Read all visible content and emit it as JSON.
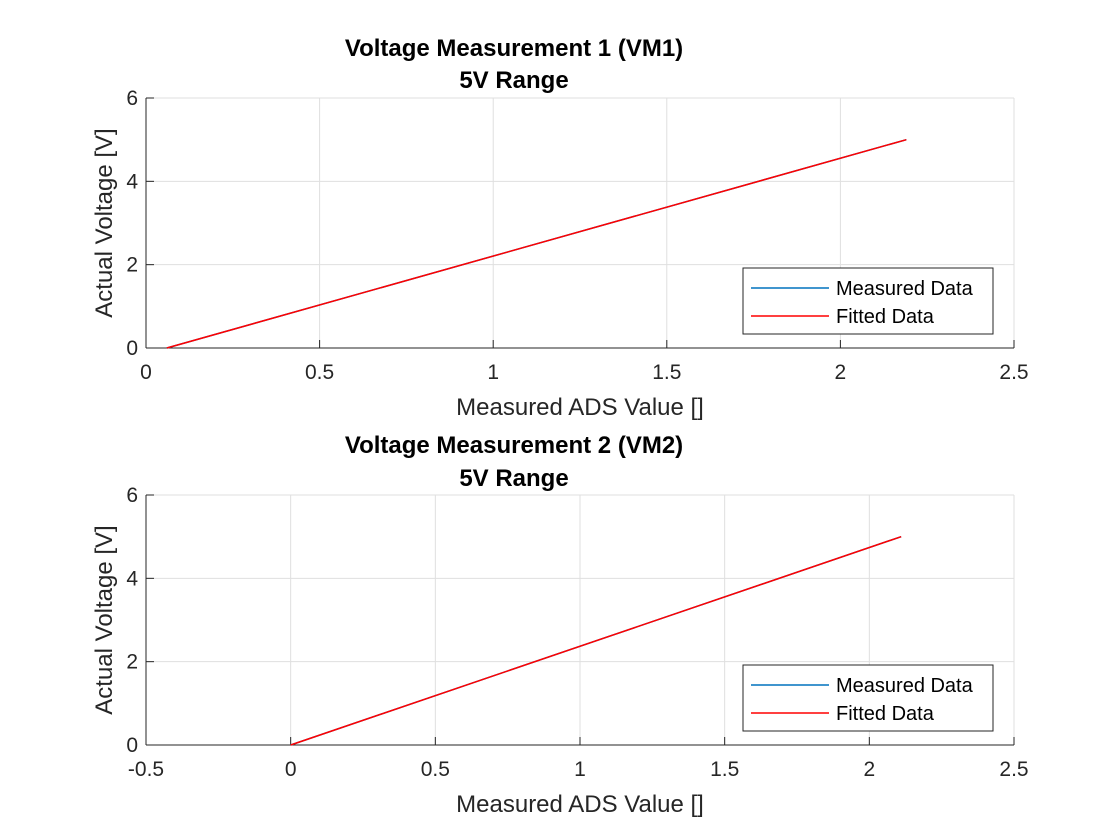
{
  "chart_data": [
    {
      "type": "line",
      "title": "Voltage Measurement 1 (VM1)",
      "subtitle": "5V Range",
      "xlabel": "Measured ADS Value []",
      "ylabel": "Actual Voltage [V]",
      "xlim": [
        0,
        2.5
      ],
      "ylim": [
        0,
        6
      ],
      "xticks": [
        0,
        0.5,
        1,
        1.5,
        2,
        2.5
      ],
      "xtick_labels": [
        "0",
        "0.5",
        "1",
        "1.5",
        "2",
        "2.5"
      ],
      "yticks": [
        0,
        2,
        4,
        6
      ],
      "ytick_labels": [
        "0",
        "2",
        "4",
        "6"
      ],
      "grid": true,
      "legend_position": "bottom-right",
      "series": [
        {
          "name": "Measured Data",
          "color": "#0072BD",
          "x": [
            0.06,
            2.19
          ],
          "y": [
            0.0,
            5.0
          ]
        },
        {
          "name": "Fitted Data",
          "color": "#FF0000",
          "x": [
            0.06,
            2.19
          ],
          "y": [
            0.0,
            5.0
          ]
        }
      ]
    },
    {
      "type": "line",
      "title": "Voltage Measurement 2 (VM2)",
      "subtitle": "5V Range",
      "xlabel": "Measured ADS Value []",
      "ylabel": "Actual Voltage [V]",
      "xlim": [
        -0.5,
        2.5
      ],
      "ylim": [
        0,
        6
      ],
      "xticks": [
        -0.5,
        0,
        0.5,
        1,
        1.5,
        2,
        2.5
      ],
      "xtick_labels": [
        "-0.5",
        "0",
        "0.5",
        "1",
        "1.5",
        "2",
        "2.5"
      ],
      "yticks": [
        0,
        2,
        4,
        6
      ],
      "ytick_labels": [
        "0",
        "2",
        "4",
        "6"
      ],
      "grid": true,
      "legend_position": "bottom-right",
      "series": [
        {
          "name": "Measured Data",
          "color": "#0072BD",
          "x": [
            0.0,
            2.11
          ],
          "y": [
            0.0,
            5.0
          ]
        },
        {
          "name": "Fitted Data",
          "color": "#FF0000",
          "x": [
            0.0,
            2.11
          ],
          "y": [
            0.0,
            5.0
          ]
        }
      ]
    }
  ]
}
